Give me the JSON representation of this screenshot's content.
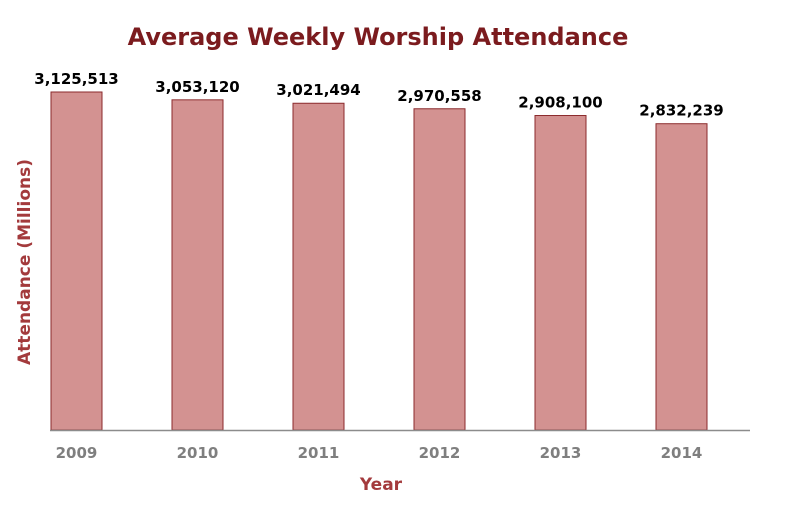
{
  "chart_data": {
    "type": "bar",
    "title": "Average Weekly Worship Attendance",
    "xlabel": "Year",
    "ylabel": "Attendance (Millions)",
    "categories": [
      "2009",
      "2010",
      "2011",
      "2012",
      "2013",
      "2014"
    ],
    "values": [
      3125513,
      3053120,
      3021494,
      2970558,
      2908100,
      2832239
    ],
    "data_labels": [
      "3,125,513",
      "3,053,120",
      "3,021,494",
      "2,970,558",
      "2,908,100",
      "2,832,239"
    ],
    "ylim": [
      0,
      3125513
    ],
    "grid": false,
    "legend": "none",
    "colors": {
      "bar_fill": "#d39291",
      "bar_stroke": "#8b2a2c",
      "title": "#7b1b1e",
      "axis_label": "#a33a3c",
      "tick": "#7f7f7f",
      "axis_line": "#8c8c8c"
    }
  }
}
